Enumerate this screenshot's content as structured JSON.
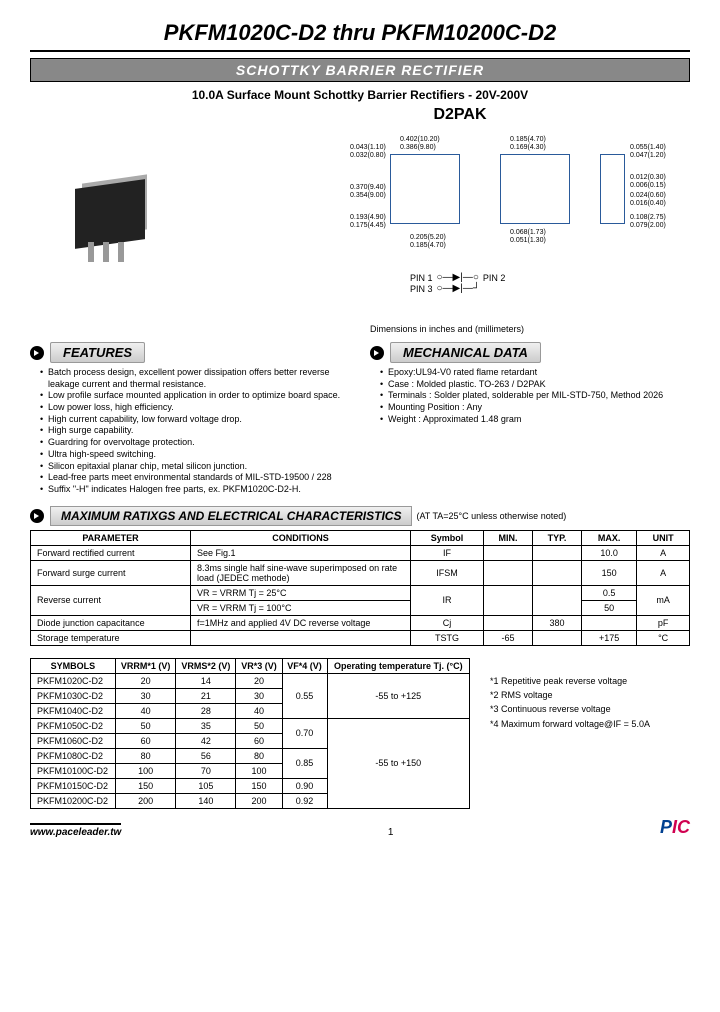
{
  "title": "PKFM1020C-D2 thru PKFM10200C-D2",
  "banner": "SCHOTTKY BARRIER RECTIFIER",
  "subtitle": "10.0A Surface Mount Schottky Barrier Rectifiers - 20V-200V",
  "package_label": "D2PAK",
  "dims_caption": "Dimensions in inches and (millimeters)",
  "pin_labels": {
    "p1": "PIN 1",
    "p2": "PIN 2",
    "p3": "PIN 3"
  },
  "dim_values": {
    "d1": "0.402(10.20)",
    "d1b": "0.386(9.80)",
    "d2": "0.043(1.10)",
    "d2b": "0.032(0.80)",
    "d3": "0.185(4.70)",
    "d3b": "0.169(4.30)",
    "d4": "0.055(1.40)",
    "d4b": "0.047(1.20)",
    "d5": "0.370(9.40)",
    "d5b": "0.354(9.00)",
    "d6": "0.012(0.30)",
    "d6b": "0.006(0.15)",
    "d7": "0.024(0.60)",
    "d7b": "0.016(0.40)",
    "d8": "0.193(4.90)",
    "d8b": "0.175(4.45)",
    "d9": "0.108(2.75)",
    "d9b": "0.079(2.00)",
    "d10": "0.068(1.73)",
    "d10b": "0.051(1.30)",
    "d11": "0.205(5.20)",
    "d11b": "0.185(4.70)"
  },
  "features": {
    "title": "FEATURES",
    "items": [
      "Batch process design, excellent power dissipation offers better reverse leakage current and thermal resistance.",
      "Low profile surface mounted application in order to optimize board space.",
      "Low power loss, high efficiency.",
      "High current capability, low forward voltage drop.",
      "High surge capability.",
      "Guardring for overvoltage protection.",
      "Ultra high-speed switching.",
      "Silicon epitaxial planar chip, metal silicon junction.",
      "Lead-free parts meet environmental standards of MIL-STD-19500 / 228",
      "Suffix \"-H\" indicates Halogen free parts, ex. PKFM1020C-D2-H."
    ]
  },
  "mech": {
    "title": "MECHANICAL DATA",
    "items": [
      "Epoxy:UL94-V0 rated flame retardant",
      "Case : Molded plastic. TO-263 / D2PAK",
      "Terminals : Solder plated, solderable per MIL-STD-750, Method 2026",
      "Mounting Position : Any",
      "Weight : Approximated 1.48 gram"
    ]
  },
  "max": {
    "title": "MAXIMUM RATIXGS AND ELECTRICAL CHARACTERISTICS",
    "note": "(AT TA=25°C unless otherwise noted)",
    "headers": {
      "param": "PARAMETER",
      "cond": "CONDITIONS",
      "sym": "Symbol",
      "min": "MIN.",
      "typ": "TYP.",
      "max": "MAX.",
      "unit": "UNIT"
    },
    "rows": [
      {
        "param": "Forward rectified current",
        "cond": "See Fig.1",
        "sym": "IF",
        "min": "",
        "typ": "",
        "max": "10.0",
        "unit": "A"
      },
      {
        "param": "Forward surge current",
        "cond": "8.3ms single half sine-wave superimposed on rate load (JEDEC methode)",
        "sym": "IFSM",
        "min": "",
        "typ": "",
        "max": "150",
        "unit": "A"
      },
      {
        "param": "Reverse current",
        "cond_a": "VR = VRRM Tj = 25°C",
        "cond_b": "VR = VRRM Tj = 100°C",
        "sym": "IR",
        "min": "",
        "typ": "",
        "max_a": "0.5",
        "max_b": "50",
        "unit": "mA"
      },
      {
        "param": "Diode junction capacitance",
        "cond": "f=1MHz and applied 4V DC reverse voltage",
        "sym": "Cj",
        "min": "",
        "typ": "380",
        "max": "",
        "unit": "pF"
      },
      {
        "param": "Storage temperature",
        "cond": "",
        "sym": "TSTG",
        "min": "-65",
        "typ": "",
        "max": "+175",
        "unit": "°C"
      }
    ]
  },
  "tbl2": {
    "headers": {
      "sym": "SYMBOLS",
      "vrrm": "VRRM*1 (V)",
      "vrms": "VRMS*2 (V)",
      "vr": "VR*3 (V)",
      "vf": "VF*4 (V)",
      "temp": "Operating temperature Tj. (°C)"
    },
    "rows": [
      {
        "sym": "PKFM1020C-D2",
        "vrrm": "20",
        "vrms": "14",
        "vr": "20",
        "vf": "0.55",
        "temp": "-55 to +125"
      },
      {
        "sym": "PKFM1030C-D2",
        "vrrm": "30",
        "vrms": "21",
        "vr": "30",
        "vf": "0.55",
        "temp": ""
      },
      {
        "sym": "PKFM1040C-D2",
        "vrrm": "40",
        "vrms": "28",
        "vr": "40",
        "vf": "0.55",
        "temp": ""
      },
      {
        "sym": "PKFM1050C-D2",
        "vrrm": "50",
        "vrms": "35",
        "vr": "50",
        "vf": "0.70",
        "temp": "-55 to +150"
      },
      {
        "sym": "PKFM1060C-D2",
        "vrrm": "60",
        "vrms": "42",
        "vr": "60",
        "vf": "0.70",
        "temp": ""
      },
      {
        "sym": "PKFM1080C-D2",
        "vrrm": "80",
        "vrms": "56",
        "vr": "80",
        "vf": "0.85",
        "temp": ""
      },
      {
        "sym": "PKFM10100C-D2",
        "vrrm": "100",
        "vrms": "70",
        "vr": "100",
        "vf": "0.85",
        "temp": ""
      },
      {
        "sym": "PKFM10150C-D2",
        "vrrm": "150",
        "vrms": "105",
        "vr": "150",
        "vf": "0.90",
        "temp": ""
      },
      {
        "sym": "PKFM10200C-D2",
        "vrrm": "200",
        "vrms": "140",
        "vr": "200",
        "vf": "0.92",
        "temp": ""
      }
    ]
  },
  "footnotes": [
    "*1 Repetitive peak reverse voltage",
    "*2 RMS voltage",
    "*3 Continuous reverse voltage",
    "*4 Maximum forward voltage@IF = 5.0A"
  ],
  "footer": {
    "url": "www.paceleader.tw",
    "page": "1",
    "logo_a": "P",
    "logo_b": "IC"
  }
}
